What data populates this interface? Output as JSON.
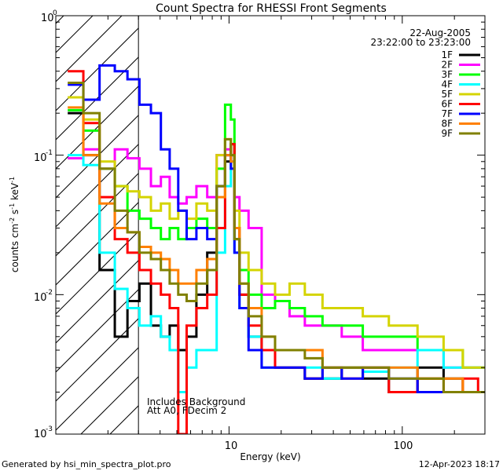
{
  "chart_data": {
    "type": "line",
    "title": "Count Spectra for RHESSI Front Segments",
    "xlabel": "Energy (keV)",
    "ylabel_main": "counts cm",
    "ylabel_exp1": "-2",
    "ylabel_mid": " s",
    "ylabel_exp2": "-1",
    "ylabel_end": " keV",
    "ylabel_exp3": "-1",
    "x_scale": "log",
    "y_scale": "log",
    "xlim": [
      1.0,
      300.0
    ],
    "ylim": [
      0.001,
      1.0
    ],
    "x_ticks": [
      {
        "value": 10,
        "label": "10"
      },
      {
        "value": 100,
        "label": "100"
      }
    ],
    "y_ticks": [
      {
        "value": 1.0,
        "base": "10",
        "exp": "0"
      },
      {
        "value": 0.1,
        "base": "10",
        "exp": "-1"
      },
      {
        "value": 0.01,
        "base": "10",
        "exp": "-2"
      },
      {
        "value": 0.001,
        "base": "10",
        "exp": "-3"
      }
    ],
    "hatched_below_keV": 3.0,
    "date": "22-Aug-2005",
    "time_range": "23:22:00 to 23:23:00",
    "notes": [
      "Includes Background",
      "Att A0, FDecim 2"
    ],
    "footer_left": "Generated by hsi_min_spectra_plot.pro",
    "footer_right": "12-Apr-2023 18:17",
    "series": [
      {
        "name": "1F",
        "color": "#000000",
        "x": [
          1.3,
          1.6,
          2.0,
          2.4,
          2.8,
          3.3,
          3.8,
          4.3,
          4.8,
          5.4,
          6.0,
          7.0,
          8.0,
          9.0,
          10.0,
          10.5,
          11.0,
          12.0,
          14.0,
          17.0,
          20.0,
          25.0,
          30.0,
          40.0,
          50.0,
          70.0,
          100.0,
          150.0,
          200.0,
          250.0,
          300.0
        ],
        "values": [
          0.2,
          0.1,
          0.015,
          0.005,
          0.009,
          0.012,
          0.006,
          0.005,
          0.006,
          0.004,
          0.005,
          0.01,
          0.02,
          0.06,
          0.09,
          0.12,
          0.025,
          0.01,
          0.005,
          0.004,
          0.003,
          0.003,
          0.0025,
          0.0025,
          0.003,
          0.0025,
          0.002,
          0.003,
          0.0025,
          0.002,
          0.002
        ]
      },
      {
        "name": "2F",
        "color": "#ff00ff",
        "x": [
          1.3,
          1.6,
          2.0,
          2.4,
          2.8,
          3.3,
          3.8,
          4.3,
          4.8,
          5.4,
          6.0,
          7.0,
          8.0,
          9.0,
          10.0,
          10.5,
          11.0,
          12.0,
          14.0,
          17.0,
          20.0,
          25.0,
          30.0,
          40.0,
          50.0,
          70.0,
          100.0,
          150.0,
          200.0,
          250.0,
          300.0
        ],
        "values": [
          0.095,
          0.11,
          0.08,
          0.11,
          0.095,
          0.08,
          0.06,
          0.07,
          0.05,
          0.045,
          0.05,
          0.06,
          0.05,
          0.1,
          0.11,
          0.1,
          0.05,
          0.04,
          0.03,
          0.01,
          0.009,
          0.007,
          0.006,
          0.006,
          0.005,
          0.004,
          0.004,
          0.004,
          0.003,
          0.003,
          0.003
        ]
      },
      {
        "name": "3F",
        "color": "#00ff00",
        "x": [
          1.3,
          1.6,
          2.0,
          2.4,
          2.8,
          3.3,
          3.8,
          4.3,
          4.8,
          5.4,
          6.0,
          7.0,
          8.0,
          9.0,
          10.0,
          10.5,
          11.0,
          12.0,
          14.0,
          17.0,
          20.0,
          25.0,
          30.0,
          40.0,
          50.0,
          70.0,
          100.0,
          150.0,
          200.0,
          250.0,
          300.0
        ],
        "values": [
          0.21,
          0.15,
          0.08,
          0.06,
          0.04,
          0.035,
          0.03,
          0.025,
          0.03,
          0.025,
          0.03,
          0.035,
          0.03,
          0.08,
          0.23,
          0.18,
          0.03,
          0.015,
          0.01,
          0.008,
          0.009,
          0.008,
          0.007,
          0.006,
          0.006,
          0.005,
          0.005,
          0.004,
          0.004,
          0.003,
          0.003
        ]
      },
      {
        "name": "4F",
        "color": "#00ffff",
        "x": [
          1.3,
          1.6,
          2.0,
          2.4,
          2.8,
          3.3,
          3.8,
          4.3,
          4.8,
          5.4,
          6.0,
          7.0,
          8.0,
          9.0,
          10.0,
          10.5,
          11.0,
          12.0,
          14.0,
          17.0,
          20.0,
          25.0,
          30.0,
          40.0,
          50.0,
          70.0,
          100.0,
          150.0,
          200.0,
          250.0,
          300.0
        ],
        "values": [
          0.1,
          0.085,
          0.02,
          0.011,
          0.008,
          0.006,
          0.007,
          0.005,
          0.004,
          0.002,
          0.003,
          0.004,
          0.004,
          0.02,
          0.06,
          0.09,
          0.02,
          0.008,
          0.005,
          0.003,
          0.003,
          0.003,
          0.003,
          0.0025,
          0.003,
          0.0028,
          0.003,
          0.004,
          0.003,
          0.003,
          0.003
        ]
      },
      {
        "name": "5F",
        "color": "#d4d400",
        "x": [
          1.3,
          1.6,
          2.0,
          2.4,
          2.8,
          3.3,
          3.8,
          4.3,
          4.8,
          5.4,
          6.0,
          7.0,
          8.0,
          9.0,
          10.0,
          10.5,
          11.0,
          12.0,
          14.0,
          17.0,
          20.0,
          25.0,
          30.0,
          40.0,
          50.0,
          70.0,
          100.0,
          150.0,
          200.0,
          250.0,
          300.0
        ],
        "values": [
          0.26,
          0.18,
          0.09,
          0.06,
          0.055,
          0.05,
          0.04,
          0.045,
          0.035,
          0.04,
          0.035,
          0.045,
          0.04,
          0.1,
          0.13,
          0.1,
          0.04,
          0.02,
          0.015,
          0.012,
          0.01,
          0.012,
          0.01,
          0.008,
          0.008,
          0.007,
          0.006,
          0.005,
          0.004,
          0.003,
          0.003
        ]
      },
      {
        "name": "6F",
        "color": "#ff0000",
        "x": [
          1.3,
          1.6,
          2.0,
          2.4,
          2.8,
          3.3,
          3.8,
          4.3,
          4.8,
          5.4,
          6.0,
          7.0,
          8.0,
          9.0,
          10.0,
          10.5,
          11.0,
          12.0,
          14.0,
          17.0,
          20.0,
          25.0,
          30.0,
          40.0,
          50.0,
          70.0,
          100.0,
          150.0,
          200.0,
          250.0,
          300.0
        ],
        "values": [
          0.4,
          0.17,
          0.05,
          0.025,
          0.02,
          0.015,
          0.012,
          0.01,
          0.008,
          0.001,
          0.006,
          0.008,
          0.01,
          0.03,
          0.1,
          0.12,
          0.03,
          0.01,
          0.006,
          0.004,
          0.003,
          0.003,
          0.0025,
          0.003,
          0.0025,
          0.003,
          0.002,
          0.0025,
          0.002,
          0.0025,
          0.002
        ]
      },
      {
        "name": "7F",
        "color": "#0000ff",
        "x": [
          1.3,
          1.6,
          2.0,
          2.4,
          2.8,
          3.3,
          3.8,
          4.3,
          4.8,
          5.4,
          6.0,
          7.0,
          8.0,
          9.0,
          10.0,
          10.5,
          11.0,
          12.0,
          14.0,
          17.0,
          20.0,
          25.0,
          30.0,
          40.0,
          50.0,
          70.0,
          100.0,
          150.0,
          200.0,
          250.0,
          300.0
        ],
        "values": [
          0.32,
          0.25,
          0.44,
          0.4,
          0.35,
          0.23,
          0.2,
          0.11,
          0.08,
          0.04,
          0.025,
          0.03,
          0.025,
          0.06,
          0.1,
          0.08,
          0.02,
          0.008,
          0.004,
          0.003,
          0.003,
          0.003,
          0.0025,
          0.003,
          0.0025,
          0.003,
          0.0025,
          0.002,
          0.002,
          0.002,
          0.002
        ]
      },
      {
        "name": "8F",
        "color": "#ff8000",
        "x": [
          1.3,
          1.6,
          2.0,
          2.4,
          2.8,
          3.3,
          3.8,
          4.3,
          4.8,
          5.4,
          6.0,
          7.0,
          8.0,
          9.0,
          10.0,
          10.5,
          11.0,
          12.0,
          14.0,
          17.0,
          20.0,
          25.0,
          30.0,
          40.0,
          50.0,
          70.0,
          100.0,
          150.0,
          200.0,
          250.0,
          300.0
        ],
        "values": [
          0.22,
          0.1,
          0.045,
          0.03,
          0.028,
          0.022,
          0.02,
          0.018,
          0.015,
          0.012,
          0.012,
          0.015,
          0.018,
          0.05,
          0.1,
          0.09,
          0.03,
          0.012,
          0.008,
          0.005,
          0.004,
          0.004,
          0.004,
          0.003,
          0.003,
          0.003,
          0.003,
          0.0025,
          0.0025,
          0.002,
          0.002
        ]
      },
      {
        "name": "9F",
        "color": "#808000",
        "x": [
          1.3,
          1.6,
          2.0,
          2.4,
          2.8,
          3.3,
          3.8,
          4.3,
          4.8,
          5.4,
          6.0,
          7.0,
          8.0,
          9.0,
          10.0,
          10.5,
          11.0,
          12.0,
          14.0,
          17.0,
          20.0,
          25.0,
          30.0,
          40.0,
          50.0,
          70.0,
          100.0,
          150.0,
          200.0,
          250.0,
          300.0
        ],
        "values": [
          0.33,
          0.2,
          0.08,
          0.04,
          0.028,
          0.02,
          0.018,
          0.015,
          0.012,
          0.01,
          0.009,
          0.012,
          0.015,
          0.06,
          0.13,
          0.1,
          0.025,
          0.012,
          0.007,
          0.005,
          0.004,
          0.004,
          0.0035,
          0.003,
          0.003,
          0.003,
          0.0025,
          0.0025,
          0.002,
          0.002,
          0.002
        ]
      }
    ]
  }
}
